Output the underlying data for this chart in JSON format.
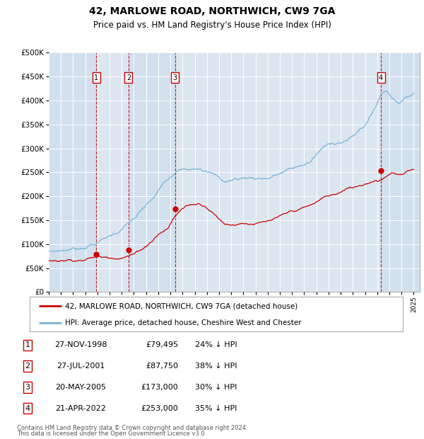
{
  "title": "42, MARLOWE ROAD, NORTHWICH, CW9 7GA",
  "subtitle": "Price paid vs. HM Land Registry's House Price Index (HPI)",
  "background_color": "#ffffff",
  "plot_bg_color": "#dce6f0",
  "grid_color": "#ffffff",
  "hpi_line_color": "#7ab3d4",
  "price_line_color": "#cc0000",
  "vline_color": "#cc0000",
  "ylim": [
    0,
    500000
  ],
  "yticks": [
    0,
    50000,
    100000,
    150000,
    200000,
    250000,
    300000,
    350000,
    400000,
    450000,
    500000
  ],
  "footer_line1": "Contains HM Land Registry data © Crown copyright and database right 2024.",
  "footer_line2": "This data is licensed under the Open Government Licence v3.0.",
  "legend_entries": [
    "42, MARLOWE ROAD, NORTHWICH, CW9 7GA (detached house)",
    "HPI: Average price, detached house, Cheshire West and Chester"
  ],
  "transactions": [
    {
      "num": 1,
      "date": "27-NOV-1998",
      "price": 79495,
      "pct": "24%",
      "dir": "↓"
    },
    {
      "num": 2,
      "date": "27-JUL-2001",
      "price": 87750,
      "pct": "38%",
      "dir": "↓"
    },
    {
      "num": 3,
      "date": "20-MAY-2005",
      "price": 173000,
      "pct": "30%",
      "dir": "↓"
    },
    {
      "num": 4,
      "date": "21-APR-2022",
      "price": 253000,
      "pct": "35%",
      "dir": "↓"
    }
  ],
  "transaction_years": [
    1998.9,
    2001.56,
    2005.38,
    2022.31
  ],
  "transaction_prices": [
    79495,
    87750,
    173000,
    253000
  ],
  "hpi_keypoints": [
    [
      1995.0,
      85000
    ],
    [
      1996.0,
      88000
    ],
    [
      1997.5,
      95000
    ],
    [
      1999.0,
      110000
    ],
    [
      2000.5,
      130000
    ],
    [
      2002.0,
      160000
    ],
    [
      2003.5,
      195000
    ],
    [
      2004.5,
      228000
    ],
    [
      2005.5,
      248000
    ],
    [
      2006.5,
      258000
    ],
    [
      2007.5,
      268000
    ],
    [
      2008.5,
      255000
    ],
    [
      2009.5,
      238000
    ],
    [
      2010.5,
      245000
    ],
    [
      2011.5,
      248000
    ],
    [
      2013.0,
      250000
    ],
    [
      2014.5,
      265000
    ],
    [
      2015.5,
      272000
    ],
    [
      2016.5,
      283000
    ],
    [
      2017.5,
      310000
    ],
    [
      2018.5,
      322000
    ],
    [
      2019.5,
      330000
    ],
    [
      2020.0,
      335000
    ],
    [
      2021.0,
      360000
    ],
    [
      2021.8,
      395000
    ],
    [
      2022.3,
      425000
    ],
    [
      2022.8,
      435000
    ],
    [
      2023.3,
      420000
    ],
    [
      2023.8,
      415000
    ],
    [
      2024.3,
      420000
    ],
    [
      2024.8,
      430000
    ],
    [
      2025.0,
      435000
    ]
  ],
  "price_keypoints": [
    [
      1995.0,
      65000
    ],
    [
      1996.0,
      68000
    ],
    [
      1997.0,
      71000
    ],
    [
      1998.0,
      74000
    ],
    [
      1998.9,
      79495
    ],
    [
      1999.5,
      78000
    ],
    [
      2000.0,
      80000
    ],
    [
      2001.0,
      83000
    ],
    [
      2001.56,
      87750
    ],
    [
      2002.0,
      90000
    ],
    [
      2003.0,
      108000
    ],
    [
      2004.0,
      135000
    ],
    [
      2004.8,
      148000
    ],
    [
      2005.38,
      173000
    ],
    [
      2005.8,
      185000
    ],
    [
      2006.3,
      195000
    ],
    [
      2006.8,
      198000
    ],
    [
      2007.3,
      200000
    ],
    [
      2007.8,
      198000
    ],
    [
      2008.5,
      188000
    ],
    [
      2009.0,
      172000
    ],
    [
      2009.5,
      163000
    ],
    [
      2010.0,
      162000
    ],
    [
      2010.5,
      165000
    ],
    [
      2011.0,
      168000
    ],
    [
      2012.0,
      168000
    ],
    [
      2013.0,
      170000
    ],
    [
      2014.0,
      176000
    ],
    [
      2015.0,
      185000
    ],
    [
      2016.0,
      192000
    ],
    [
      2016.8,
      198000
    ],
    [
      2017.5,
      210000
    ],
    [
      2018.0,
      215000
    ],
    [
      2018.8,
      220000
    ],
    [
      2019.5,
      228000
    ],
    [
      2020.2,
      232000
    ],
    [
      2020.8,
      238000
    ],
    [
      2021.3,
      244000
    ],
    [
      2021.8,
      250000
    ],
    [
      2022.31,
      253000
    ],
    [
      2022.8,
      263000
    ],
    [
      2023.2,
      272000
    ],
    [
      2023.6,
      268000
    ],
    [
      2024.0,
      265000
    ],
    [
      2024.5,
      270000
    ],
    [
      2025.0,
      275000
    ]
  ]
}
